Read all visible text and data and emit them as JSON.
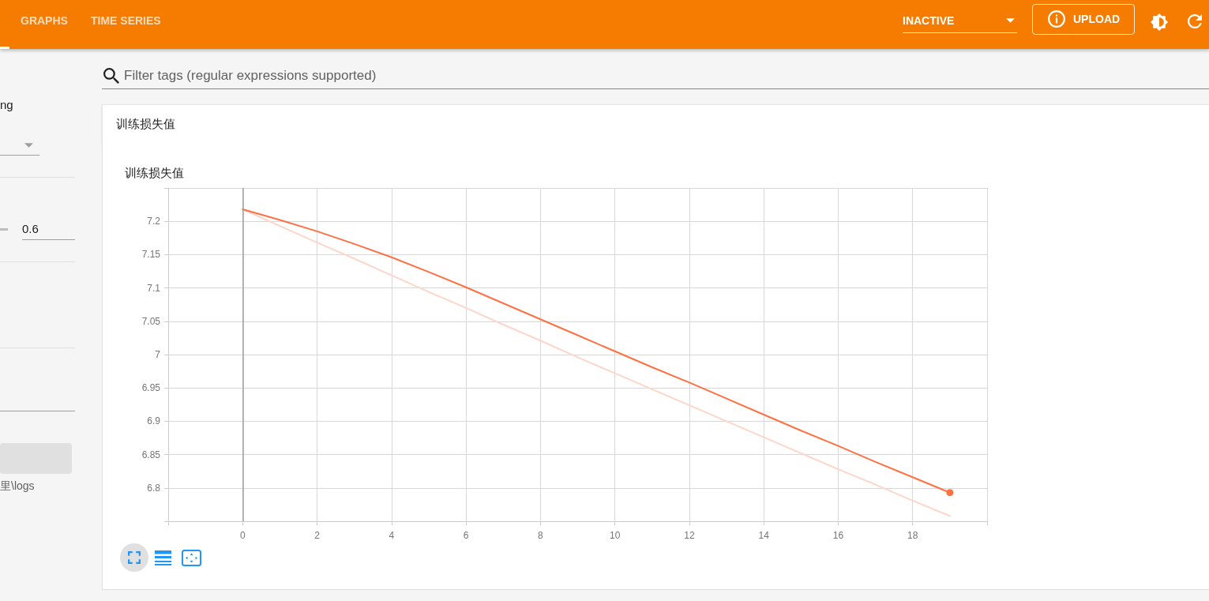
{
  "chart_data": {
    "type": "line",
    "title": "训练损失值",
    "annotations": [
      "GRAPHS",
      "TIME SERIES",
      "INACTIVE",
      "UPLOAD",
      "Filter tags (regular expressions supported)",
      "训练损失值",
      "ng",
      "0.6",
      "里\\logs"
    ],
    "x": [
      0,
      1,
      2,
      3,
      4,
      5,
      6,
      7,
      8,
      9,
      10,
      11,
      12,
      13,
      14,
      15,
      16,
      17,
      18,
      19
    ],
    "xlim": [
      -2,
      20
    ],
    "xticks": [
      {
        "value": -2,
        "label": null
      },
      0,
      2,
      4,
      6,
      8,
      10,
      12,
      14,
      16,
      18,
      {
        "value": 20,
        "label": null
      }
    ],
    "ylim": [
      6.75,
      7.25
    ],
    "yticks": [
      {
        "value": 6.75,
        "label": null
      },
      6.8,
      6.85,
      6.9,
      6.95,
      7,
      7.05,
      7.1,
      7.15,
      7.2,
      {
        "value": 7.25,
        "label": null
      }
    ],
    "grid": true,
    "ref_lines": [
      {
        "axis": "x",
        "value": 0,
        "color": "#9e9e9e"
      }
    ],
    "series": [
      {
        "color": "#fcd6ca",
        "values": [
          7.218,
          7.193,
          7.168,
          7.144,
          7.119,
          7.094,
          7.07,
          7.045,
          7.021,
          6.996,
          6.972,
          6.948,
          6.924,
          6.9,
          6.876,
          6.852,
          6.828,
          6.805,
          6.781,
          6.758
        ]
      },
      {
        "color": "#ff7043",
        "values": [
          7.218,
          7.202,
          7.185,
          7.166,
          7.146,
          7.124,
          7.101,
          7.077,
          7.053,
          7.029,
          7.005,
          6.981,
          6.958,
          6.934,
          6.91,
          6.886,
          6.863,
          6.839,
          6.816,
          6.793
        ]
      },
      {
        "type": "scatter",
        "color": "#ff7043",
        "marker": "circle",
        "x": [
          19
        ],
        "values": [
          6.793
        ]
      }
    ]
  }
}
